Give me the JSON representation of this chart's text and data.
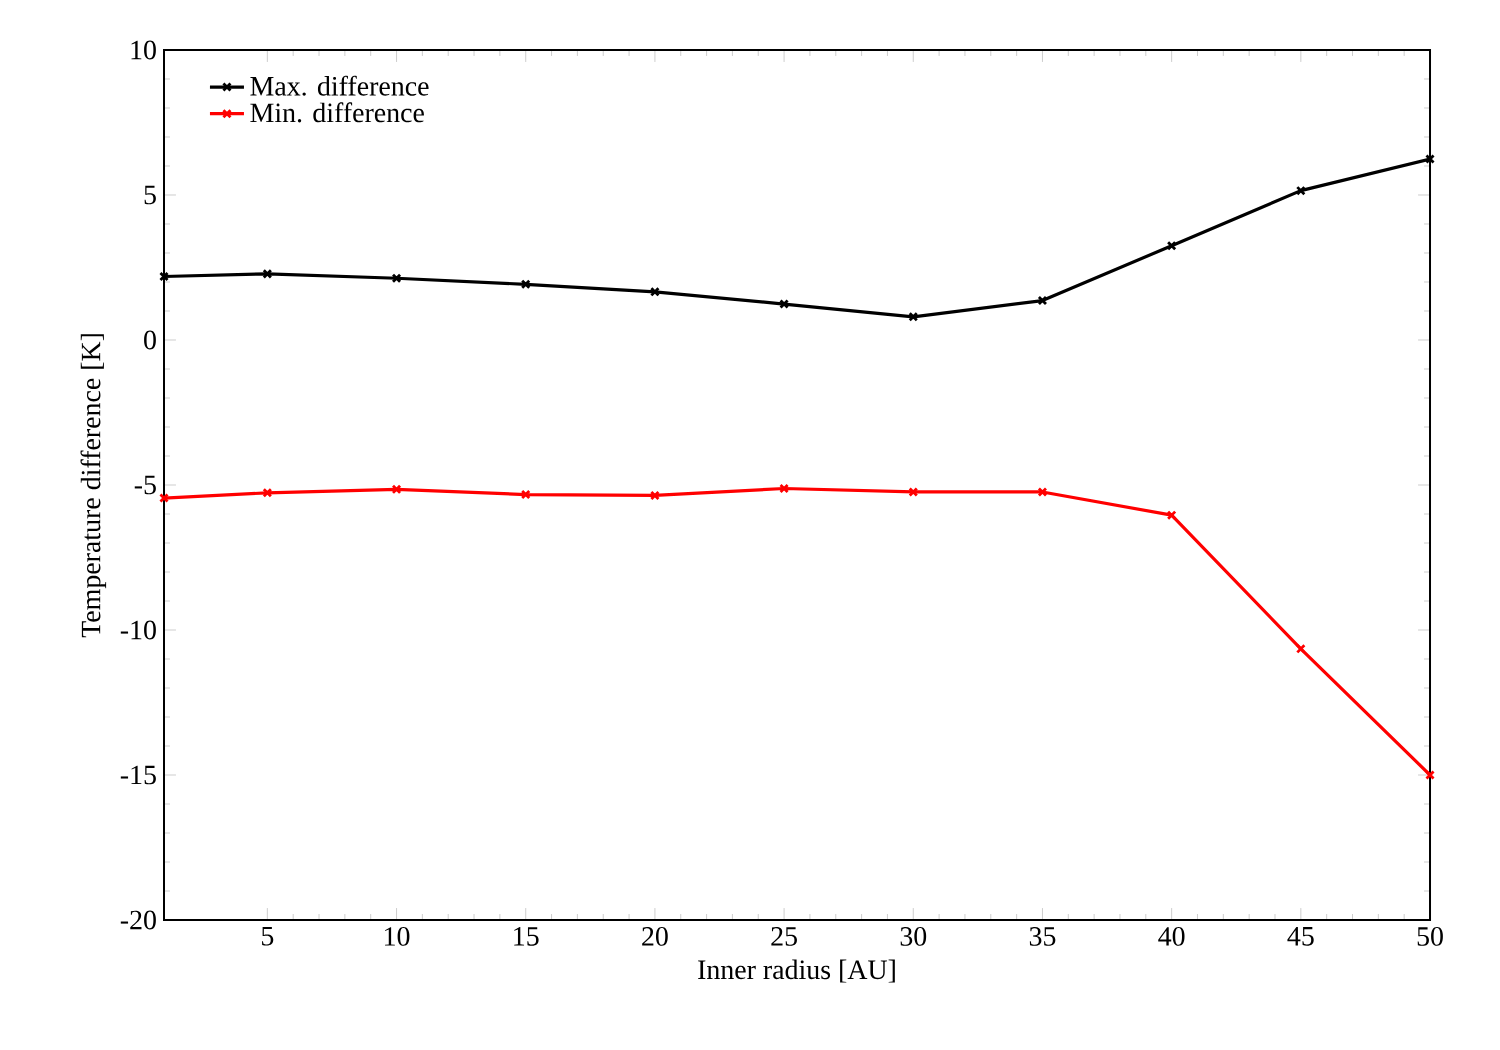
{
  "chart_data": {
    "type": "line",
    "xlabel": "Inner radius [AU]",
    "ylabel": "Temperature difference [K]",
    "x": [
      1,
      5,
      10,
      15,
      20,
      25,
      30,
      35,
      40,
      45,
      50
    ],
    "series": [
      {
        "name": "Max. difference",
        "color": "#000000",
        "values": [
          2.19,
          2.28,
          2.13,
          1.92,
          1.66,
          1.24,
          0.8,
          1.36,
          3.25,
          5.15,
          6.24
        ]
      },
      {
        "name": "Min. difference",
        "color": "#ff0000",
        "values": [
          -5.45,
          -5.27,
          -5.15,
          -5.33,
          -5.36,
          -5.12,
          -5.24,
          -5.24,
          -6.04,
          -10.65,
          -15.0
        ]
      }
    ],
    "xlim": [
      1,
      50
    ],
    "ylim": [
      -20,
      10
    ],
    "xticks": [
      5,
      10,
      15,
      20,
      25,
      30,
      35,
      40,
      45,
      50
    ],
    "yticks": [
      -20,
      -15,
      -10,
      -5,
      0,
      5,
      10
    ],
    "legend": "top left",
    "marker": "cross",
    "line_style": "solid",
    "grid": false
  }
}
